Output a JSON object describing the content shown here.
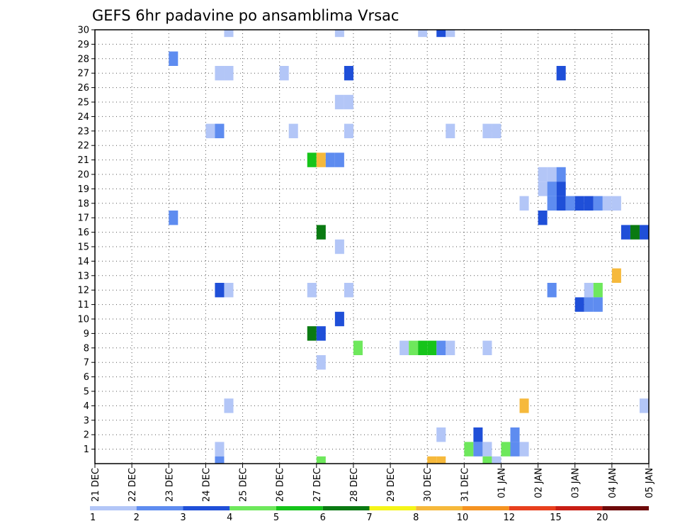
{
  "chart_data": {
    "type": "heatmap",
    "title": "GEFS 6hr padavine po ansamblima Vrsac",
    "xlabel": "",
    "ylabel": "",
    "x_unit": "6-hour step (0 = 21 DEC 00Z)",
    "x_range": [
      0,
      60
    ],
    "x_ticks": [
      {
        "step": 0,
        "label": "21 DEC"
      },
      {
        "step": 4,
        "label": "22 DEC"
      },
      {
        "step": 8,
        "label": "23 DEC"
      },
      {
        "step": 12,
        "label": "24 DEC"
      },
      {
        "step": 16,
        "label": "25 DEC"
      },
      {
        "step": 20,
        "label": "26 DEC"
      },
      {
        "step": 24,
        "label": "27 DEC"
      },
      {
        "step": 28,
        "label": "28 DEC"
      },
      {
        "step": 32,
        "label": "29 DEC"
      },
      {
        "step": 36,
        "label": "30 DEC"
      },
      {
        "step": 40,
        "label": "31 DEC"
      },
      {
        "step": 44,
        "label": "01 JAN"
      },
      {
        "step": 48,
        "label": "02 JAN"
      },
      {
        "step": 52,
        "label": "03 JAN"
      },
      {
        "step": 56,
        "label": "04 JAN"
      },
      {
        "step": 60,
        "label": "05 JAN"
      }
    ],
    "y_range": [
      0,
      30
    ],
    "y_ticks": [
      1,
      2,
      3,
      4,
      5,
      6,
      7,
      8,
      9,
      10,
      11,
      12,
      13,
      14,
      15,
      16,
      17,
      18,
      19,
      20,
      21,
      22,
      23,
      24,
      25,
      26,
      27,
      28,
      29,
      30
    ],
    "grid": true,
    "colorbar": {
      "labels": [
        "1",
        "2",
        "3",
        "4",
        "5",
        "6",
        "7",
        "8",
        "10",
        "12",
        "15",
        "20"
      ],
      "colors": [
        "#b3c6f7",
        "#5e8cf0",
        "#1f4fd8",
        "#6ee85c",
        "#16c41a",
        "#0a7a12",
        "#f5f518",
        "#f6b93b",
        "#f59322",
        "#e8401e",
        "#c81e14",
        "#6e0a0a"
      ]
    },
    "cells": [
      {
        "x": 14.5,
        "y": 30,
        "c": 0
      },
      {
        "x": 26.5,
        "y": 30,
        "c": 0
      },
      {
        "x": 35.5,
        "y": 30,
        "c": 0
      },
      {
        "x": 37.5,
        "y": 30,
        "c": 2
      },
      {
        "x": 38.5,
        "y": 30,
        "c": 0
      },
      {
        "x": 8.5,
        "y": 28,
        "c": 1
      },
      {
        "x": 13.5,
        "y": 27,
        "c": 0
      },
      {
        "x": 14.5,
        "y": 27,
        "c": 0
      },
      {
        "x": 20.5,
        "y": 27,
        "c": 0
      },
      {
        "x": 27.5,
        "y": 27,
        "c": 2
      },
      {
        "x": 50.5,
        "y": 27,
        "c": 2
      },
      {
        "x": 26.5,
        "y": 25,
        "c": 0
      },
      {
        "x": 27.5,
        "y": 25,
        "c": 0
      },
      {
        "x": 12.5,
        "y": 23,
        "c": 0
      },
      {
        "x": 13.5,
        "y": 23,
        "c": 1
      },
      {
        "x": 21.5,
        "y": 23,
        "c": 0
      },
      {
        "x": 27.5,
        "y": 23,
        "c": 0
      },
      {
        "x": 38.5,
        "y": 23,
        "c": 0
      },
      {
        "x": 42.5,
        "y": 23,
        "c": 0
      },
      {
        "x": 43.5,
        "y": 23,
        "c": 0
      },
      {
        "x": 23.5,
        "y": 21,
        "c": 4
      },
      {
        "x": 24.5,
        "y": 21,
        "c": 7
      },
      {
        "x": 25.5,
        "y": 21,
        "c": 1
      },
      {
        "x": 26.5,
        "y": 21,
        "c": 1
      },
      {
        "x": 48.5,
        "y": 20,
        "c": 0
      },
      {
        "x": 49.5,
        "y": 20,
        "c": 0
      },
      {
        "x": 50.5,
        "y": 20,
        "c": 1
      },
      {
        "x": 48.5,
        "y": 19,
        "c": 0
      },
      {
        "x": 49.5,
        "y": 19,
        "c": 1
      },
      {
        "x": 50.5,
        "y": 19,
        "c": 2
      },
      {
        "x": 46.5,
        "y": 18,
        "c": 0
      },
      {
        "x": 49.5,
        "y": 18,
        "c": 1
      },
      {
        "x": 50.5,
        "y": 18,
        "c": 2
      },
      {
        "x": 51.5,
        "y": 18,
        "c": 1
      },
      {
        "x": 52.5,
        "y": 18,
        "c": 2
      },
      {
        "x": 53.5,
        "y": 18,
        "c": 2
      },
      {
        "x": 54.5,
        "y": 18,
        "c": 1
      },
      {
        "x": 55.5,
        "y": 18,
        "c": 0
      },
      {
        "x": 56.5,
        "y": 18,
        "c": 0
      },
      {
        "x": 8.5,
        "y": 17,
        "c": 1
      },
      {
        "x": 48.5,
        "y": 17,
        "c": 2
      },
      {
        "x": 24.5,
        "y": 16,
        "c": 5
      },
      {
        "x": 57.5,
        "y": 16,
        "c": 2
      },
      {
        "x": 58.5,
        "y": 16,
        "c": 5
      },
      {
        "x": 59.5,
        "y": 16,
        "c": 2
      },
      {
        "x": 26.5,
        "y": 15,
        "c": 0
      },
      {
        "x": 56.5,
        "y": 13,
        "c": 7
      },
      {
        "x": 13.5,
        "y": 12,
        "c": 2
      },
      {
        "x": 14.5,
        "y": 12,
        "c": 0
      },
      {
        "x": 23.5,
        "y": 12,
        "c": 0
      },
      {
        "x": 27.5,
        "y": 12,
        "c": 0
      },
      {
        "x": 49.5,
        "y": 12,
        "c": 1
      },
      {
        "x": 53.5,
        "y": 12,
        "c": 0
      },
      {
        "x": 54.5,
        "y": 12,
        "c": 3
      },
      {
        "x": 52.5,
        "y": 11,
        "c": 2
      },
      {
        "x": 53.5,
        "y": 11,
        "c": 1
      },
      {
        "x": 54.5,
        "y": 11,
        "c": 1
      },
      {
        "x": 26.5,
        "y": 10,
        "c": 2
      },
      {
        "x": 23.5,
        "y": 9,
        "c": 5
      },
      {
        "x": 24.5,
        "y": 9,
        "c": 2
      },
      {
        "x": 28.5,
        "y": 8,
        "c": 3
      },
      {
        "x": 33.5,
        "y": 8,
        "c": 0
      },
      {
        "x": 34.5,
        "y": 8,
        "c": 3
      },
      {
        "x": 35.5,
        "y": 8,
        "c": 4
      },
      {
        "x": 36.5,
        "y": 8,
        "c": 4
      },
      {
        "x": 37.5,
        "y": 8,
        "c": 1
      },
      {
        "x": 38.5,
        "y": 8,
        "c": 0
      },
      {
        "x": 42.5,
        "y": 8,
        "c": 0
      },
      {
        "x": 24.5,
        "y": 7,
        "c": 0
      },
      {
        "x": 14.5,
        "y": 4,
        "c": 0
      },
      {
        "x": 46.5,
        "y": 4,
        "c": 7
      },
      {
        "x": 59.5,
        "y": 4,
        "c": 0
      },
      {
        "x": 37.5,
        "y": 2,
        "c": 0
      },
      {
        "x": 41.5,
        "y": 2,
        "c": 2
      },
      {
        "x": 45.5,
        "y": 2,
        "c": 1
      },
      {
        "x": 13.5,
        "y": 1,
        "c": 0
      },
      {
        "x": 40.5,
        "y": 1,
        "c": 3
      },
      {
        "x": 41.5,
        "y": 1,
        "c": 1
      },
      {
        "x": 42.5,
        "y": 1,
        "c": 0
      },
      {
        "x": 44.5,
        "y": 1,
        "c": 3
      },
      {
        "x": 45.5,
        "y": 1,
        "c": 1
      },
      {
        "x": 46.5,
        "y": 1,
        "c": 0
      },
      {
        "x": 13.5,
        "y": 0,
        "c": 1
      },
      {
        "x": 24.5,
        "y": 0,
        "c": 3
      },
      {
        "x": 36.5,
        "y": 0,
        "c": 7
      },
      {
        "x": 37.5,
        "y": 0,
        "c": 7
      },
      {
        "x": 42.5,
        "y": 0,
        "c": 3
      },
      {
        "x": 43.5,
        "y": 0,
        "c": 0
      }
    ]
  }
}
